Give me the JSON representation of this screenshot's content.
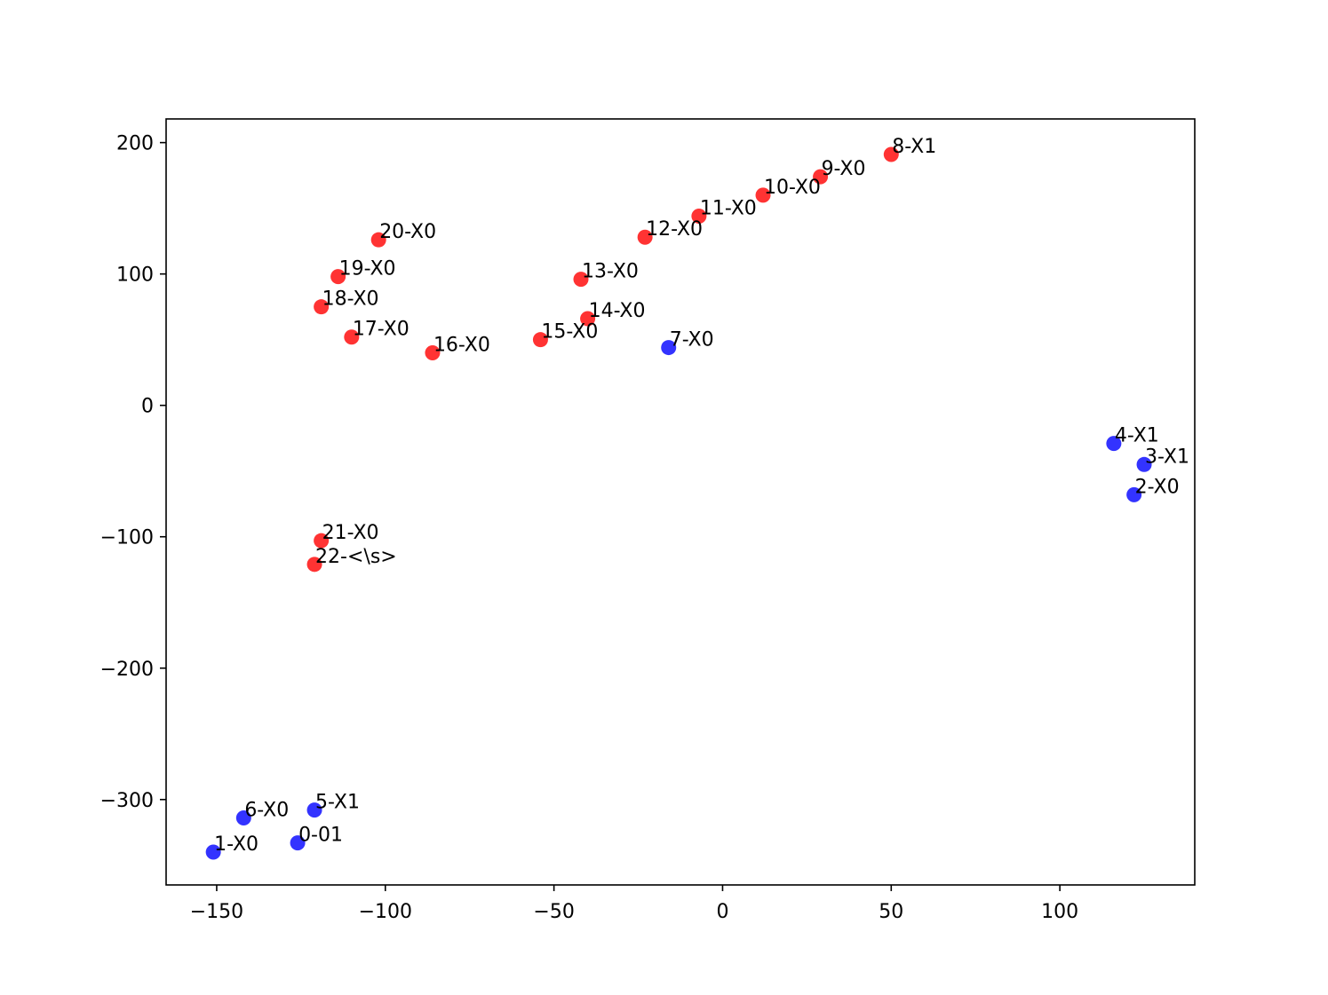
{
  "chart_data": {
    "type": "scatter",
    "title": "",
    "xlabel": "",
    "ylabel": "",
    "xlim": [
      -165,
      140
    ],
    "ylim": [
      -365,
      218
    ],
    "xticks": [
      -150,
      -100,
      -50,
      0,
      50,
      100
    ],
    "yticks": [
      -300,
      -200,
      -100,
      0,
      100,
      200
    ],
    "xtick_labels": [
      "−150",
      "−100",
      "−50",
      "0",
      "50",
      "100"
    ],
    "ytick_labels": [
      "−300",
      "−200",
      "−100",
      "0",
      "100",
      "200"
    ],
    "grid": false,
    "colors": {
      "red": "#ff0000",
      "blue": "#0000ff"
    },
    "points": [
      {
        "label": "0-01",
        "x": -126,
        "y": -333,
        "color": "blue"
      },
      {
        "label": "1-X0",
        "x": -151,
        "y": -340,
        "color": "blue"
      },
      {
        "label": "2-X0",
        "x": 122,
        "y": -68,
        "color": "blue"
      },
      {
        "label": "3-X1",
        "x": 125,
        "y": -45,
        "color": "blue"
      },
      {
        "label": "4-X1",
        "x": 116,
        "y": -29,
        "color": "blue"
      },
      {
        "label": "5-X1",
        "x": -121,
        "y": -308,
        "color": "blue"
      },
      {
        "label": "6-X0",
        "x": -142,
        "y": -314,
        "color": "blue"
      },
      {
        "label": "7-X0",
        "x": -16,
        "y": 44,
        "color": "blue"
      },
      {
        "label": "8-X1",
        "x": 50,
        "y": 191,
        "color": "red"
      },
      {
        "label": "9-X0",
        "x": 29,
        "y": 174,
        "color": "red"
      },
      {
        "label": "10-X0",
        "x": 12,
        "y": 160,
        "color": "red"
      },
      {
        "label": "11-X0",
        "x": -7,
        "y": 144,
        "color": "red"
      },
      {
        "label": "12-X0",
        "x": -23,
        "y": 128,
        "color": "red"
      },
      {
        "label": "13-X0",
        "x": -42,
        "y": 96,
        "color": "red"
      },
      {
        "label": "14-X0",
        "x": -40,
        "y": 66,
        "color": "red"
      },
      {
        "label": "15-X0",
        "x": -54,
        "y": 50,
        "color": "red"
      },
      {
        "label": "16-X0",
        "x": -86,
        "y": 40,
        "color": "red"
      },
      {
        "label": "17-X0",
        "x": -110,
        "y": 52,
        "color": "red"
      },
      {
        "label": "18-X0",
        "x": -119,
        "y": 75,
        "color": "red"
      },
      {
        "label": "19-X0",
        "x": -114,
        "y": 98,
        "color": "red"
      },
      {
        "label": "20-X0",
        "x": -102,
        "y": 126,
        "color": "red"
      },
      {
        "label": "21-X0",
        "x": -119,
        "y": -103,
        "color": "red"
      },
      {
        "label": "22-<\\s>",
        "x": -121,
        "y": -121,
        "color": "red"
      }
    ]
  }
}
